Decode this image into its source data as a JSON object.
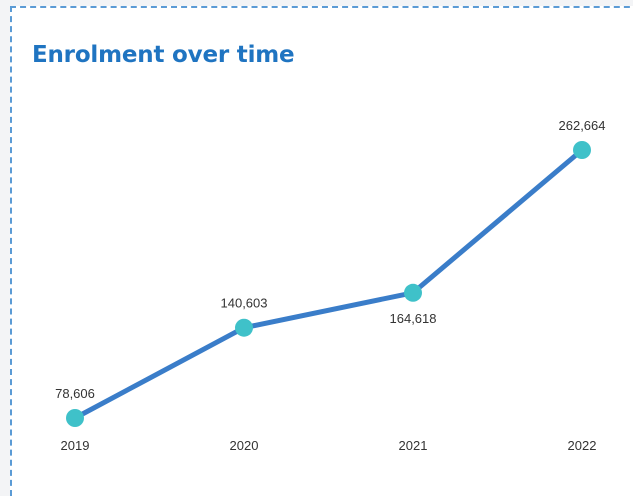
{
  "chart_data": {
    "type": "line",
    "title": "Enrolment over time",
    "xlabel": "",
    "ylabel": "",
    "categories": [
      "2019",
      "2020",
      "2021",
      "2022"
    ],
    "values": [
      78606,
      140603,
      164618,
      262664
    ],
    "data_labels": [
      "78,606",
      "140,603",
      "164,618",
      "262,664"
    ],
    "ylim": [
      78606,
      262664
    ],
    "grid": false,
    "legend": "none",
    "colors": {
      "line": "#3a7dc9",
      "marker": "#3fc1c9",
      "title": "#1f74c1",
      "border": "#5b9bd5"
    }
  }
}
